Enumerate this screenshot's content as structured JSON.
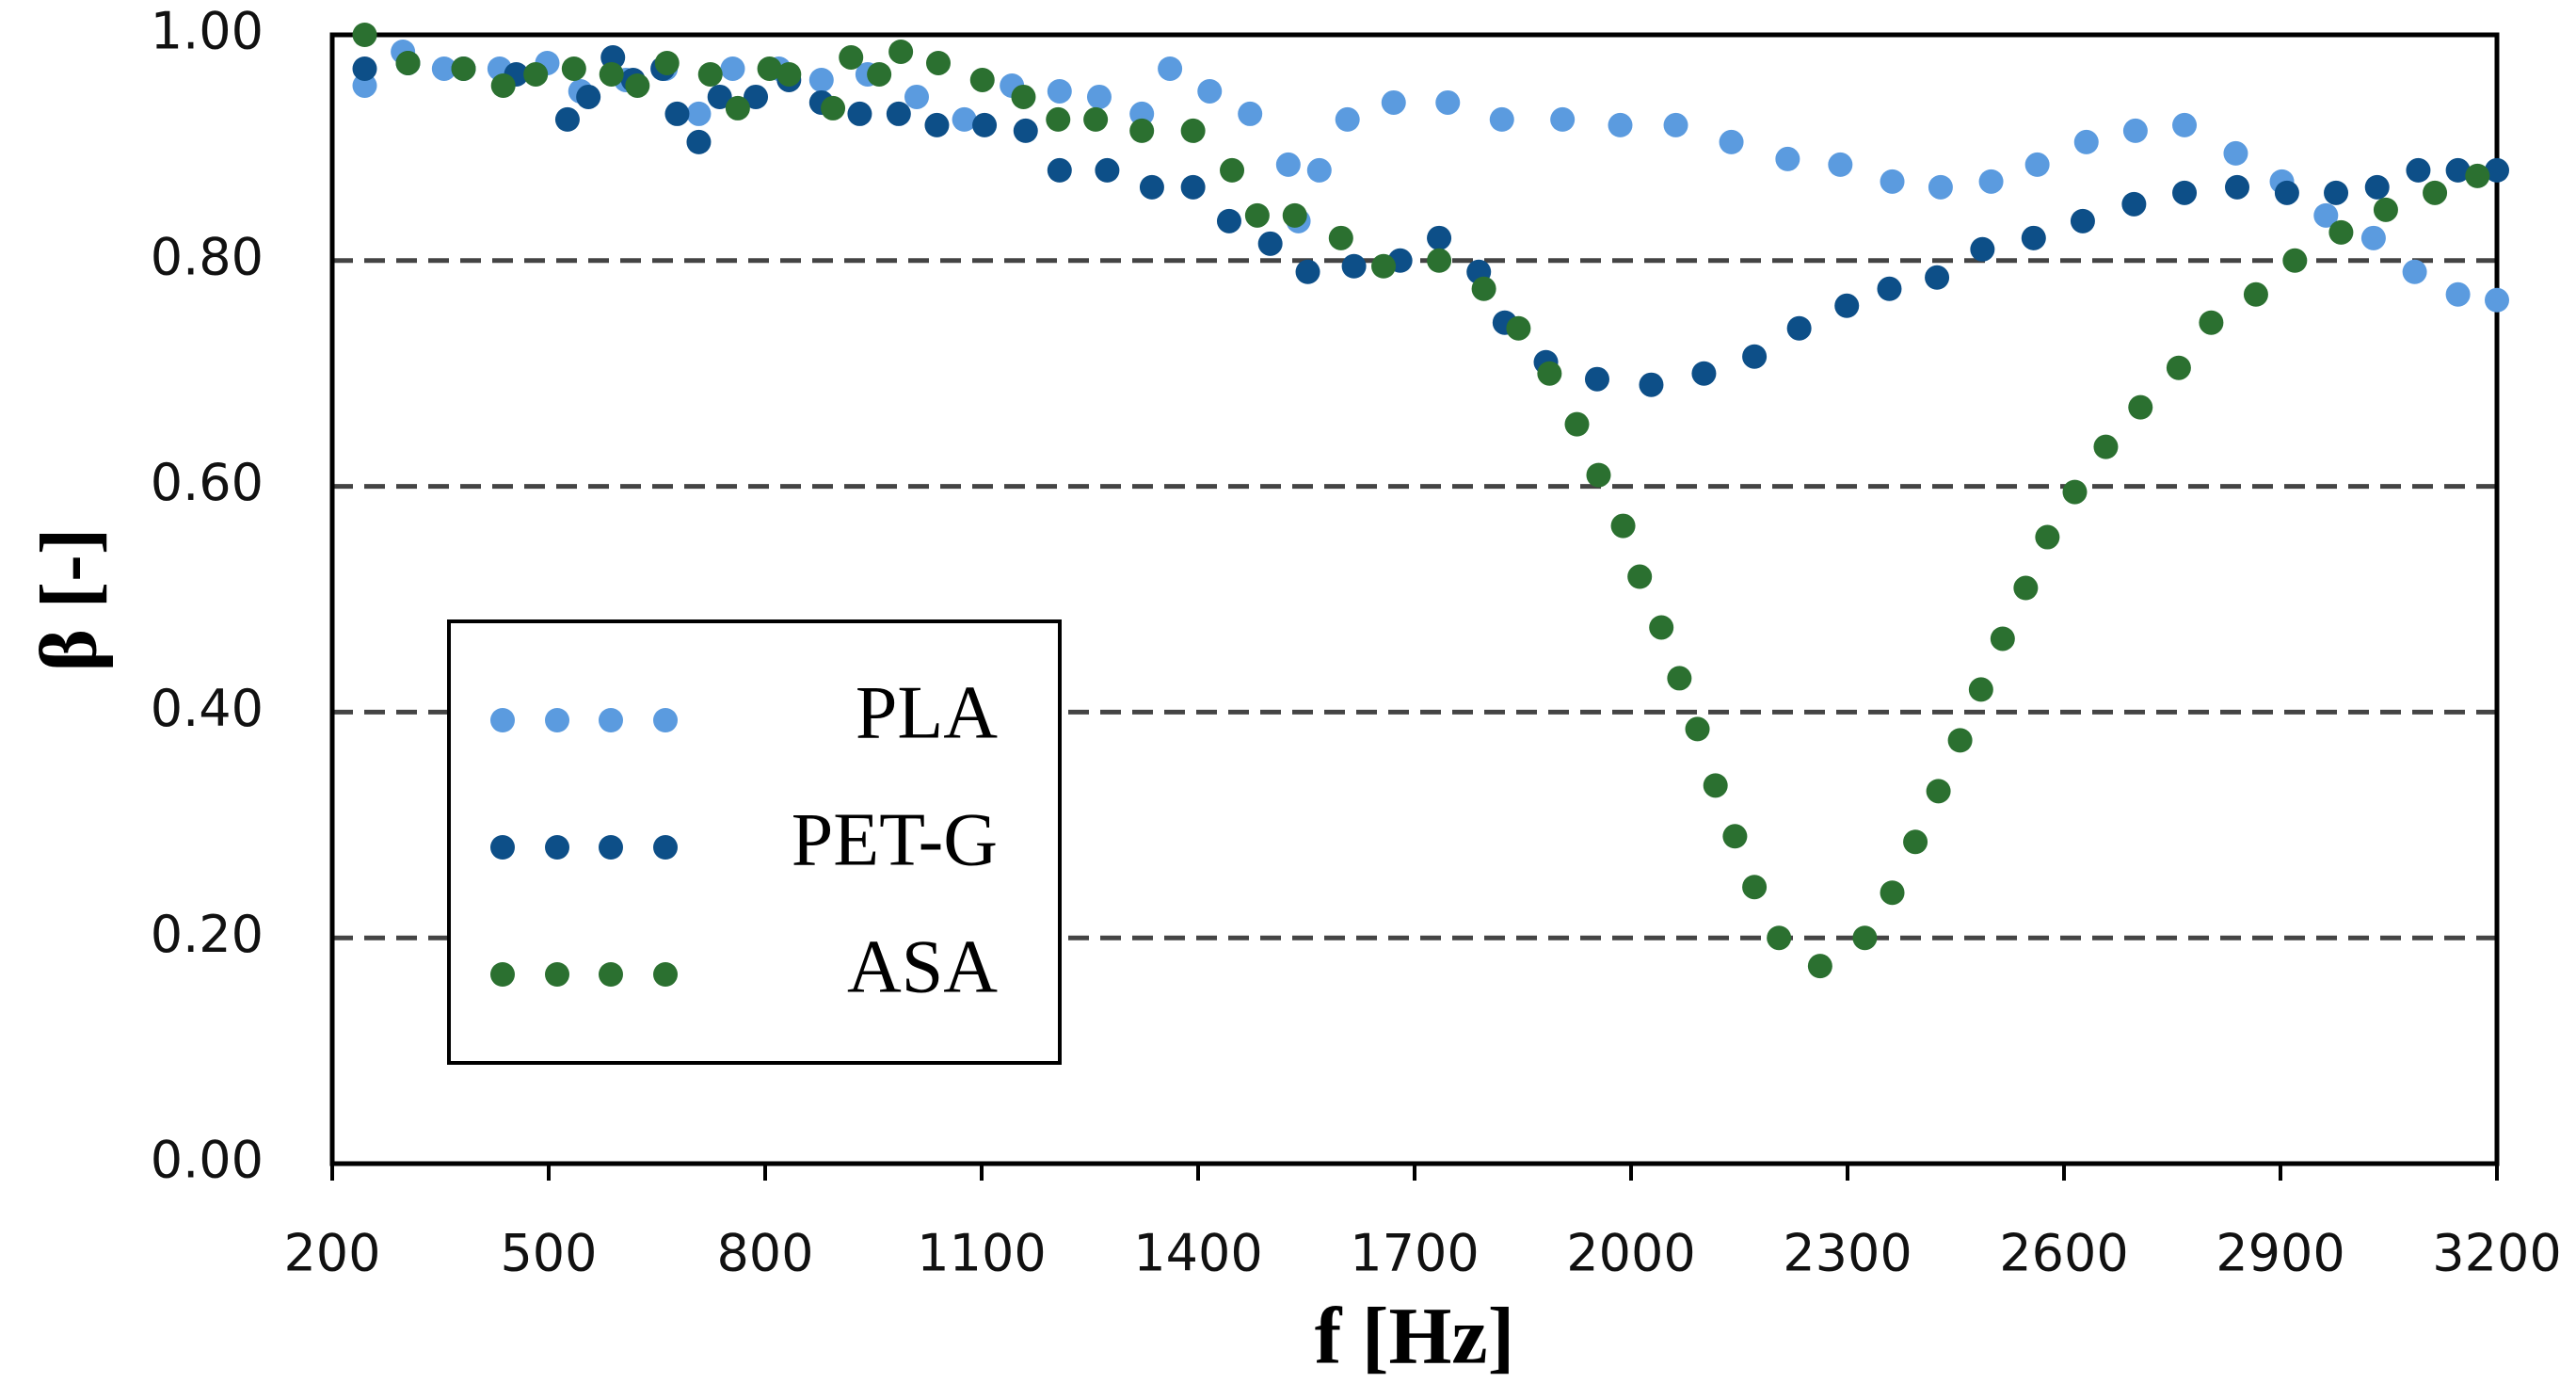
{
  "chart_data": {
    "type": "scatter",
    "xlabel": "f [Hz]",
    "ylabel": "β [-]",
    "xlim": [
      200,
      3200
    ],
    "xticks": [
      200,
      500,
      800,
      1100,
      1400,
      1700,
      2000,
      2300,
      2600,
      2900,
      3200
    ],
    "ylim": [
      0,
      1
    ],
    "yticks": [
      {
        "value": 0,
        "label": "0.00"
      },
      {
        "value": 0.2,
        "label": "0.20"
      },
      {
        "value": 0.4,
        "label": "0.40"
      },
      {
        "value": 0.6,
        "label": "0.60"
      },
      {
        "value": 0.8,
        "label": "0.80"
      },
      {
        "value": 1,
        "label": "1.00"
      }
    ],
    "grid": true,
    "legend": "lower left",
    "series": [
      {
        "name": "PLA",
        "color": "#5b9bdf",
        "x": [
          245,
          298,
          355,
          432,
          498,
          544,
          607,
          662,
          708,
          755,
          819,
          878,
          942,
          1010,
          1076,
          1142,
          1208,
          1263,
          1322,
          1361,
          1416,
          1472,
          1525,
          1539,
          1568,
          1607,
          1671,
          1746,
          1821,
          1905,
          1985,
          2062,
          2139,
          2217,
          2290,
          2362,
          2429,
          2499,
          2563,
          2631,
          2699,
          2767,
          2838,
          2902,
          2963,
          3029,
          3086,
          3146,
          3200
        ],
        "values": [
          0.955,
          0.985,
          0.97,
          0.97,
          0.975,
          0.95,
          0.96,
          0.97,
          0.93,
          0.97,
          0.97,
          0.96,
          0.965,
          0.945,
          0.925,
          0.955,
          0.95,
          0.945,
          0.93,
          0.97,
          0.95,
          0.93,
          0.885,
          0.835,
          0.88,
          0.925,
          0.94,
          0.94,
          0.925,
          0.925,
          0.92,
          0.92,
          0.905,
          0.89,
          0.885,
          0.87,
          0.865,
          0.87,
          0.885,
          0.905,
          0.915,
          0.92,
          0.895,
          0.87,
          0.84,
          0.82,
          0.79,
          0.77,
          0.765
        ]
      },
      {
        "name": "PET-G",
        "color": "#0d4f88",
        "x": [
          245,
          305,
          382,
          455,
          526,
          555,
          589,
          617,
          658,
          678,
          708,
          737,
          787,
          833,
          878,
          931,
          985,
          1038,
          1104,
          1161,
          1208,
          1274,
          1336,
          1393,
          1443,
          1500,
          1552,
          1616,
          1680,
          1734,
          1789,
          1825,
          1882,
          1953,
          2028,
          2101,
          2171,
          2233,
          2299,
          2358,
          2424,
          2487,
          2558,
          2626,
          2697,
          2767,
          2840,
          2909,
          2977,
          3034,
          3091,
          3146,
          3200
        ],
        "values": [
          0.97,
          0.975,
          0.97,
          0.965,
          0.925,
          0.945,
          0.98,
          0.96,
          0.97,
          0.93,
          0.905,
          0.945,
          0.945,
          0.96,
          0.94,
          0.93,
          0.93,
          0.92,
          0.92,
          0.915,
          0.88,
          0.88,
          0.865,
          0.865,
          0.835,
          0.815,
          0.79,
          0.795,
          0.8,
          0.82,
          0.79,
          0.745,
          0.71,
          0.695,
          0.69,
          0.7,
          0.715,
          0.74,
          0.76,
          0.775,
          0.785,
          0.81,
          0.82,
          0.835,
          0.85,
          0.86,
          0.865,
          0.86,
          0.86,
          0.865,
          0.88,
          0.88,
          0.88
        ]
      },
      {
        "name": "ASA",
        "color": "#2b7030",
        "x": [
          245,
          305,
          382,
          437,
          482,
          535,
          587,
          623,
          664,
          724,
          762,
          806,
          833,
          894,
          919,
          958,
          988,
          1040,
          1101,
          1158,
          1206,
          1258,
          1322,
          1393,
          1447,
          1482,
          1534,
          1598,
          1657,
          1734,
          1796,
          1844,
          1887,
          1925,
          1955,
          1989,
          2012,
          2042,
          2067,
          2092,
          2117,
          2144,
          2171,
          2205,
          2262,
          2324,
          2362,
          2394,
          2426,
          2456,
          2485,
          2515,
          2547,
          2577,
          2615,
          2658,
          2706,
          2759,
          2804,
          2866,
          2920,
          2984,
          3046,
          3114,
          3173
        ],
        "values": [
          1.0,
          0.975,
          0.97,
          0.955,
          0.965,
          0.97,
          0.965,
          0.955,
          0.975,
          0.965,
          0.935,
          0.97,
          0.965,
          0.935,
          0.98,
          0.965,
          0.985,
          0.975,
          0.96,
          0.945,
          0.925,
          0.925,
          0.915,
          0.915,
          0.88,
          0.84,
          0.84,
          0.82,
          0.795,
          0.8,
          0.775,
          0.74,
          0.7,
          0.655,
          0.61,
          0.565,
          0.52,
          0.475,
          0.43,
          0.385,
          0.335,
          0.29,
          0.245,
          0.2,
          0.175,
          0.2,
          0.24,
          0.285,
          0.33,
          0.375,
          0.42,
          0.465,
          0.51,
          0.555,
          0.595,
          0.635,
          0.67,
          0.705,
          0.745,
          0.77,
          0.8,
          0.825,
          0.845,
          0.86,
          0.875
        ]
      }
    ]
  }
}
